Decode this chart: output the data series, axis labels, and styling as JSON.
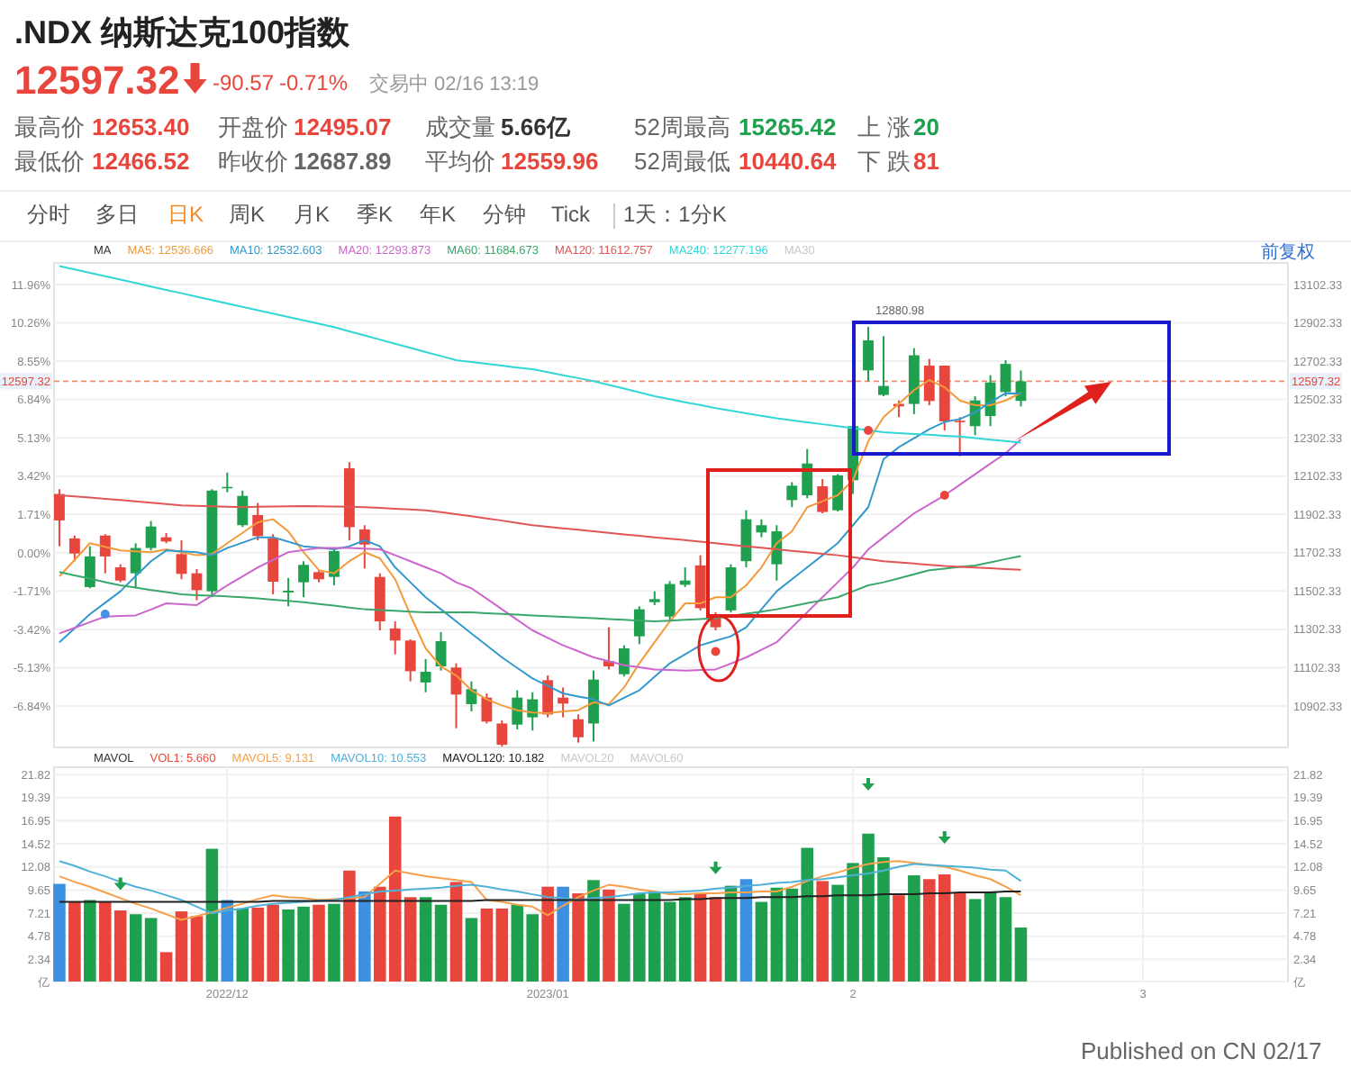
{
  "chart_data": [
    {
      "type": "other",
      "title": ".NDX 纳斯达克100指数",
      "annotations": [
        "12597.32",
        "-90.57",
        "-0.71%",
        "交易中 02/16 13:19",
        "最高价",
        "12653.40",
        "开盘价",
        "12495.07",
        "成交量",
        "5.66亿",
        "52周最高",
        "15265.42",
        "上 涨",
        "20",
        "最低价",
        "12466.52",
        "昨收价",
        "12687.89",
        "平均价",
        "12559.96",
        "52周最低",
        "10440.64",
        "下 跌",
        "81",
        "分时",
        "多日",
        "日K",
        "周K",
        "月K",
        "季K",
        "年K",
        "分钟",
        "Tick",
        "1天：1分K",
        "前复权",
        "Published on CN 02/17"
      ]
    },
    {
      "type": "candlestick",
      "categories": [
        null,
        null,
        null,
        null,
        null,
        null,
        null,
        null,
        null,
        null,
        null,
        null,
        null,
        null,
        null,
        null,
        null,
        null,
        null,
        null,
        null,
        null,
        null,
        null,
        null,
        null,
        null,
        null,
        null,
        null,
        null,
        null,
        null,
        null,
        null,
        null,
        null,
        null,
        null,
        null,
        null,
        null,
        null,
        null,
        null,
        null,
        null,
        null,
        null,
        null,
        null,
        null,
        null,
        null,
        null,
        null,
        null,
        null,
        null,
        null,
        null,
        null,
        null,
        null,
        null,
        null,
        null,
        null,
        null,
        null,
        null,
        null,
        null,
        null,
        null,
        null,
        null,
        null,
        null,
        null,
        null
      ],
      "ohlc": [
        [
          12009,
          12034,
          11736,
          11871
        ],
        [
          11777,
          11792,
          11658,
          11698
        ],
        [
          11523,
          11736,
          11517,
          11683
        ],
        [
          11792,
          11799,
          11595,
          11683
        ],
        [
          11626,
          11642,
          11548,
          11557
        ],
        [
          11595,
          11752,
          11517,
          11727
        ],
        [
          11727,
          11868,
          11714,
          11839
        ],
        [
          11783,
          11805,
          11752,
          11761
        ],
        [
          11695,
          11767,
          11564,
          11592
        ],
        [
          11595,
          11617,
          11454,
          11507
        ],
        [
          11501,
          12034,
          11470,
          12027
        ],
        [
          12040,
          12121,
          12018,
          12046
        ],
        [
          11846,
          12027,
          11836,
          11999
        ],
        [
          11899,
          11962,
          11767,
          11789
        ],
        [
          11777,
          11799,
          11485,
          11551
        ],
        [
          11495,
          11570,
          11423,
          11504
        ],
        [
          11548,
          11658,
          11470,
          11639
        ],
        [
          11601,
          11611,
          11548,
          11564
        ],
        [
          11576,
          11720,
          11532,
          11711
        ],
        [
          12143,
          12175,
          11767,
          11836
        ],
        [
          11824,
          11846,
          11620,
          11745
        ],
        [
          11576,
          11595,
          11297,
          11344
        ],
        [
          11307,
          11344,
          11172,
          11244
        ],
        [
          11244,
          11250,
          11031,
          11084
        ],
        [
          11025,
          11147,
          10974,
          11081
        ],
        [
          11109,
          11288,
          11087,
          11241
        ],
        [
          11103,
          11125,
          10786,
          10962
        ],
        [
          10912,
          11031,
          10874,
          10990
        ],
        [
          10946,
          10968,
          10811,
          10821
        ],
        [
          10811,
          10827,
          10690,
          10700
        ],
        [
          10805,
          10984,
          10780,
          10946
        ],
        [
          10843,
          10974,
          10774,
          10937
        ],
        [
          11037,
          11062,
          10843,
          10858
        ],
        [
          10946,
          10999,
          10843,
          10915
        ],
        [
          10833,
          10858,
          10711,
          10739
        ],
        [
          10811,
          11087,
          10717,
          11040
        ],
        [
          11137,
          11313,
          11093,
          11109
        ],
        [
          11068,
          11219,
          11056,
          11203
        ],
        [
          11266,
          11423,
          11225,
          11407
        ],
        [
          11444,
          11501,
          11429,
          11460
        ],
        [
          11369,
          11554,
          11350,
          11539
        ],
        [
          11535,
          11626,
          11523,
          11557
        ],
        [
          11636,
          11689,
          11401,
          11413
        ],
        [
          11366,
          11391,
          11297,
          11313
        ],
        [
          11401,
          11642,
          11391,
          11626
        ],
        [
          11658,
          11924,
          11626,
          11877
        ],
        [
          11808,
          11877,
          11783,
          11846
        ],
        [
          11642,
          11846,
          11557,
          11814
        ],
        [
          11977,
          12071,
          11940,
          12052
        ],
        [
          12002,
          12244,
          11987,
          12168
        ],
        [
          12049,
          12087,
          11908,
          11915
        ],
        [
          11924,
          12112,
          11918,
          12106
        ],
        [
          12081,
          12372,
          12009,
          12363
        ],
        [
          12654,
          12880.98,
          12598,
          12811
        ],
        [
          12526,
          12833,
          12519,
          12573
        ],
        [
          12479,
          12497,
          12410,
          12466
        ],
        [
          12479,
          12770,
          12426,
          12733
        ],
        [
          12679,
          12714,
          12472,
          12494
        ],
        [
          12679,
          12679,
          12341,
          12388
        ],
        [
          12391,
          12410,
          12206,
          12385
        ],
        [
          12363,
          12519,
          12316,
          12497
        ],
        [
          12416,
          12629,
          12363,
          12591
        ],
        [
          12541,
          12707,
          12519,
          12687.89
        ],
        [
          12495.07,
          12653.4,
          12466.52,
          12597.32
        ],
        null,
        null,
        null,
        null,
        null,
        null,
        null,
        null,
        null,
        null,
        null,
        null,
        null,
        null,
        null,
        null,
        null
      ],
      "colors": [
        "#e8463c",
        "#e8463c",
        "#1fa04e",
        "#e8463c",
        "#e8463c",
        "#1fa04e",
        "#1fa04e",
        "#e8463c",
        "#e8463c",
        "#e8463c",
        "#1fa04e",
        "#1fa04e",
        "#1fa04e",
        "#e8463c",
        "#e8463c",
        "#1fa04e",
        "#1fa04e",
        "#e8463c",
        "#1fa04e",
        "#e8463c",
        "#e8463c",
        "#e8463c",
        "#e8463c",
        "#e8463c",
        "#1fa04e",
        "#1fa04e",
        "#e8463c",
        "#1fa04e",
        "#e8463c",
        "#e8463c",
        "#1fa04e",
        "#1fa04e",
        "#e8463c",
        "#e8463c",
        "#e8463c",
        "#1fa04e",
        "#e8463c",
        "#1fa04e",
        "#1fa04e",
        "#1fa04e",
        "#1fa04e",
        "#1fa04e",
        "#e8463c",
        "#e8463c",
        "#1fa04e",
        "#1fa04e",
        "#1fa04e",
        "#1fa04e",
        "#1fa04e",
        "#1fa04e",
        "#e8463c",
        "#1fa04e",
        "#1fa04e",
        "#1fa04e",
        "#1fa04e",
        "#e8463c",
        "#1fa04e",
        "#e8463c",
        "#e8463c",
        "#e8463c",
        "#1fa04e",
        "#1fa04e",
        "#1fa04e",
        "#1fa04e",
        null,
        null,
        null,
        null,
        null,
        null,
        null,
        null,
        null,
        null,
        null,
        null,
        null,
        null,
        null,
        null,
        null
      ],
      "ylim": [
        10686,
        13215
      ],
      "yticks": [
        10902.33,
        11102.33,
        11302.33,
        11502.33,
        11702.33,
        11902.33,
        12102.33,
        12302.33,
        12502.33,
        12702.33,
        12902.33,
        13102.33
      ],
      "y2lim": [
        -8.68,
        12.93
      ],
      "y2ticks": [
        {
          "value": -6.84,
          "label": "-6.84%"
        },
        {
          "value": -5.13,
          "label": "-5.13%"
        },
        {
          "value": -3.42,
          "label": "-3.42%"
        },
        {
          "value": -1.71,
          "label": "-1.71%"
        },
        {
          "value": 0,
          "label": "0.00%"
        },
        {
          "value": 1.71,
          "label": "1.71%"
        },
        {
          "value": 3.42,
          "label": "3.42%"
        },
        {
          "value": 5.13,
          "label": "5.13%"
        },
        {
          "value": 6.84,
          "label": "6.84%"
        },
        {
          "value": 8.55,
          "label": "8.55%"
        },
        {
          "value": 10.26,
          "label": "10.26%"
        },
        {
          "value": 11.96,
          "label": "11.96%"
        }
      ],
      "grid": "y",
      "ref_lines": [
        {
          "axis": "y",
          "value": 12597.32,
          "label": "12597.32",
          "color": "#f0906a",
          "line_style": "dashed"
        }
      ],
      "annotations": [
        "MA",
        "MA30",
        "12880.98"
      ],
      "series": [
        {
          "type": "line",
          "name": "MA5: 12536.666",
          "color": "#f39a3b",
          "values": [
            11579,
            11665,
            11752,
            11733,
            11714,
            11710,
            11705,
            11720,
            11705,
            11689,
            11695,
            11752,
            11806,
            11861,
            11877,
            11814,
            11705,
            11611,
            11595,
            11658,
            11705,
            11673,
            11564,
            11376,
            11203,
            11109,
            11062,
            10984,
            10937,
            10905,
            10880,
            10868,
            10865,
            10874,
            10880,
            10921,
            10912,
            10999,
            11125,
            11235,
            11344,
            11438,
            11438,
            11470,
            11470,
            11532,
            11626,
            11752,
            11814,
            11940,
            11971,
            12002,
            12081,
            12284,
            12410,
            12479,
            12551,
            12604,
            12566,
            12497,
            12472,
            12472,
            12497,
            12537,
            null,
            null,
            null,
            null,
            null,
            null,
            null,
            null,
            null,
            null,
            null,
            null,
            null,
            null,
            null,
            null,
            null
          ]
        },
        {
          "type": "line",
          "name": "MA10: 12532.603",
          "color": "#3399cc",
          "values": [
            11235,
            11308,
            11382,
            11441,
            11501,
            11580,
            11658,
            11714,
            11710,
            11705,
            11689,
            11727,
            11755,
            11783,
            11783,
            11760,
            11736,
            11728,
            11720,
            11736,
            11767,
            11736,
            11626,
            11548,
            11470,
            11407,
            11344,
            11281,
            11218,
            11156,
            11101,
            11046,
            11007,
            10968,
            10952,
            10937,
            10905,
            10945,
            10984,
            11055,
            11125,
            11172,
            11219,
            11243,
            11266,
            11313,
            11407,
            11501,
            11564,
            11626,
            11689,
            11752,
            11846,
            11940,
            12190,
            12253,
            12300,
            12347,
            12385,
            12400,
            12435,
            12488,
            12535,
            12533,
            null,
            null,
            null,
            null,
            null,
            null,
            null,
            null,
            null,
            null,
            null,
            null,
            null,
            null,
            null,
            null,
            null
          ]
        },
        {
          "type": "line",
          "name": "MA20: 12293.873",
          "color": "#cc66cc",
          "values": [
            11281,
            11310,
            11340,
            11369,
            11372,
            11375,
            11406,
            11438,
            11434,
            11429,
            11480,
            11532,
            11579,
            11626,
            11665,
            11705,
            11716,
            11727,
            11727,
            11727,
            11724,
            11720,
            11689,
            11658,
            11626,
            11595,
            11548,
            11517,
            11462,
            11407,
            11352,
            11297,
            11258,
            11219,
            11188,
            11156,
            11136,
            11115,
            11104,
            11093,
            11090,
            11087,
            11090,
            11093,
            11124,
            11156,
            11195,
            11235,
            11313,
            11391,
            11470,
            11548,
            11626,
            11720,
            11783,
            11845,
            11908,
            11955,
            12002,
            12057,
            12112,
            12167,
            12222,
            12294,
            null,
            null,
            null,
            null,
            null,
            null,
            null,
            null,
            null,
            null,
            null,
            null,
            null,
            null,
            null,
            null,
            null
          ]
        },
        {
          "type": "line",
          "name": "MA60: 11684.673",
          "color": "#3aa86b",
          "values": [
            11601,
            11584,
            11567,
            11549,
            11532,
            11520,
            11508,
            11497,
            11485,
            11481,
            11478,
            11474,
            11470,
            11464,
            11457,
            11451,
            11444,
            11435,
            11426,
            11416,
            11407,
            11403,
            11399,
            11395,
            11391,
            11391,
            11391,
            11391,
            11387,
            11383,
            11379,
            11375,
            11371,
            11368,
            11364,
            11360,
            11356,
            11352,
            11348,
            11344,
            11348,
            11352,
            11356,
            11360,
            11372,
            11384,
            11395,
            11407,
            11423,
            11439,
            11454,
            11470,
            11501,
            11532,
            11548,
            11569,
            11590,
            11611,
            11619,
            11628,
            11636,
            11652,
            11669,
            11685,
            null,
            null,
            null,
            null,
            null,
            null,
            null,
            null,
            null,
            null,
            null,
            null,
            null,
            null,
            null,
            null,
            null
          ]
        },
        {
          "type": "line",
          "name": "MA120: 11612.757",
          "color": "#e05555",
          "values": [
            12002,
            11996,
            11990,
            11983,
            11977,
            11970,
            11963,
            11956,
            11949,
            11947,
            11945,
            11942,
            11940,
            11942,
            11943,
            11945,
            11946,
            11945,
            11943,
            11942,
            11940,
            11936,
            11932,
            11928,
            11924,
            11914,
            11903,
            11893,
            11881,
            11870,
            11858,
            11846,
            11838,
            11830,
            11822,
            11814,
            11806,
            11798,
            11791,
            11783,
            11775,
            11768,
            11760,
            11752,
            11744,
            11736,
            11728,
            11720,
            11712,
            11705,
            11697,
            11689,
            11679,
            11668,
            11658,
            11652,
            11646,
            11639,
            11633,
            11629,
            11625,
            11621,
            11617,
            11613,
            null,
            null,
            null,
            null,
            null,
            null,
            null,
            null,
            null,
            null,
            null,
            null,
            null,
            null,
            null,
            null,
            null
          ]
        },
        {
          "type": "line",
          "name": "MA240: 12277.196",
          "color": "#33d6d6",
          "values": [
            13199,
            13181,
            13163,
            13146,
            13128,
            13110,
            13092,
            13074,
            13057,
            13039,
            13021,
            13003,
            12986,
            12968,
            12951,
            12933,
            12915,
            12898,
            12880,
            12858,
            12837,
            12815,
            12793,
            12772,
            12750,
            12729,
            12707,
            12698,
            12688,
            12679,
            12669,
            12660,
            12645,
            12629,
            12614,
            12598,
            12578,
            12559,
            12539,
            12519,
            12504,
            12488,
            12473,
            12457,
            12444,
            12430,
            12417,
            12404,
            12394,
            12383,
            12373,
            12363,
            12352,
            12342,
            12331,
            12327,
            12322,
            12318,
            12313,
            12309,
            12301,
            12293,
            12285,
            12277,
            null,
            null,
            null,
            null,
            null,
            null,
            null,
            null,
            null,
            null,
            null,
            null,
            null,
            null,
            null,
            null,
            null
          ]
        },
        {
          "type": "scatter",
          "marker": "circle",
          "values": [
            null,
            null,
            null,
            11382,
            null,
            null,
            null,
            null,
            null,
            null,
            null,
            null,
            null,
            null,
            null,
            null,
            null,
            null,
            null,
            null,
            null,
            null,
            null,
            null,
            null,
            null,
            null,
            null,
            null,
            null,
            null,
            null,
            null,
            null,
            null,
            null,
            null,
            null,
            null,
            null,
            null,
            null,
            null,
            11187,
            null,
            null,
            null,
            null,
            null,
            null,
            null,
            null,
            null,
            12341,
            null,
            null,
            null,
            null,
            12002,
            null,
            null,
            null,
            null,
            null,
            null,
            null,
            null,
            null,
            null,
            null,
            null,
            null,
            null,
            null,
            null,
            null,
            null,
            null,
            null,
            null,
            null
          ],
          "colors": [
            null,
            null,
            null,
            "#4a90e2",
            null,
            null,
            null,
            null,
            null,
            null,
            null,
            null,
            null,
            null,
            null,
            null,
            null,
            null,
            null,
            null,
            null,
            null,
            null,
            null,
            null,
            null,
            null,
            null,
            null,
            null,
            null,
            null,
            null,
            null,
            null,
            null,
            null,
            null,
            null,
            null,
            null,
            null,
            null,
            "#e8463c",
            null,
            null,
            null,
            null,
            null,
            null,
            null,
            null,
            null,
            "#e8463c",
            null,
            null,
            null,
            null,
            "#e8463c",
            null,
            null,
            null,
            null,
            null,
            null,
            null,
            null,
            null,
            null,
            null,
            null,
            null,
            null,
            null,
            null,
            null,
            null,
            null,
            null,
            null,
            null
          ]
        }
      ]
    },
    {
      "type": "bar",
      "categories": [
        null,
        null,
        null,
        null,
        null,
        null,
        null,
        null,
        null,
        null,
        null,
        "2022/12",
        null,
        null,
        null,
        null,
        null,
        null,
        null,
        null,
        null,
        null,
        null,
        null,
        null,
        null,
        null,
        null,
        null,
        null,
        null,
        null,
        "2023/01",
        null,
        null,
        null,
        null,
        null,
        null,
        null,
        null,
        null,
        null,
        null,
        null,
        null,
        null,
        null,
        null,
        null,
        null,
        null,
        "2",
        null,
        null,
        null,
        null,
        null,
        null,
        null,
        null,
        null,
        null,
        null,
        null,
        null,
        null,
        null,
        null,
        null,
        null,
        "3",
        null,
        null,
        null,
        null,
        null,
        null,
        null,
        null,
        null
      ],
      "ylim": [
        0,
        22.6
      ],
      "yticks": [
        {
          "value": 0,
          "label": "亿"
        },
        2.34,
        4.78,
        7.21,
        9.65,
        12.08,
        14.52,
        16.95,
        19.39,
        21.82
      ],
      "y2lim": [
        0,
        22.6
      ],
      "y2ticks": [
        {
          "value": 0,
          "label": "亿"
        },
        2.34,
        4.78,
        7.21,
        9.65,
        12.08,
        14.52,
        16.95,
        19.39,
        21.82
      ],
      "grid": true,
      "annotations": [
        "MAVOL",
        "MAVOL20",
        "MAVOL60"
      ],
      "series": [
        {
          "type": "bar",
          "name": "VOL1: 5.660",
          "color": "#e8463c",
          "values": [
            10.3,
            8.4,
            8.6,
            8.4,
            7.5,
            7.1,
            6.7,
            3.1,
            7.4,
            6.9,
            14.0,
            8.6,
            7.7,
            7.8,
            8.1,
            7.6,
            7.9,
            8.1,
            8.2,
            11.7,
            9.5,
            10.0,
            17.4,
            8.9,
            8.9,
            8.1,
            10.5,
            6.7,
            7.7,
            7.7,
            8.1,
            7.1,
            10.0,
            10.0,
            9.3,
            10.7,
            9.7,
            8.2,
            9.3,
            9.5,
            8.4,
            8.9,
            9.3,
            8.9,
            10.1,
            10.8,
            8.4,
            9.9,
            9.8,
            14.1,
            10.6,
            10.2,
            12.5,
            15.6,
            13.1,
            9.1,
            11.2,
            10.8,
            11.3,
            9.4,
            8.7,
            9.5,
            8.9,
            5.7,
            null,
            null,
            null,
            null,
            null,
            null,
            null,
            null,
            null,
            null,
            null,
            null,
            null,
            null,
            null,
            null,
            null
          ],
          "colors": [
            "#3d8fe0",
            "#e8463c",
            "#1fa04e",
            "#e8463c",
            "#e8463c",
            "#1fa04e",
            "#1fa04e",
            "#e8463c",
            "#e8463c",
            "#e8463c",
            "#1fa04e",
            "#3d8fe0",
            "#1fa04e",
            "#e8463c",
            "#e8463c",
            "#1fa04e",
            "#1fa04e",
            "#e8463c",
            "#1fa04e",
            "#e8463c",
            "#3d8fe0",
            "#e8463c",
            "#e8463c",
            "#e8463c",
            "#1fa04e",
            "#1fa04e",
            "#e8463c",
            "#1fa04e",
            "#e8463c",
            "#e8463c",
            "#1fa04e",
            "#1fa04e",
            "#e8463c",
            "#3d8fe0",
            "#e8463c",
            "#1fa04e",
            "#e8463c",
            "#1fa04e",
            "#1fa04e",
            "#1fa04e",
            "#1fa04e",
            "#1fa04e",
            "#e8463c",
            "#e8463c",
            "#1fa04e",
            "#3d8fe0",
            "#1fa04e",
            "#1fa04e",
            "#1fa04e",
            "#1fa04e",
            "#e8463c",
            "#1fa04e",
            "#1fa04e",
            "#1fa04e",
            "#1fa04e",
            "#e8463c",
            "#1fa04e",
            "#e8463c",
            "#e8463c",
            "#e8463c",
            "#1fa04e",
            "#1fa04e",
            "#1fa04e",
            "#1fa04e",
            null,
            null,
            null,
            null,
            null,
            null,
            null,
            null,
            null,
            null,
            null,
            null,
            null,
            null,
            null,
            null,
            null
          ]
        },
        {
          "type": "line",
          "name": "MAVOL5: 9.131",
          "color": "#f5a04a",
          "values": [
            11.1,
            10.5,
            10.0,
            9.4,
            8.8,
            8.2,
            7.7,
            7.1,
            6.5,
            6.9,
            7.3,
            7.8,
            8.2,
            8.7,
            9.1,
            8.9,
            8.8,
            8.6,
            8.7,
            8.8,
            8.9,
            10.3,
            11.7,
            11.4,
            11.1,
            10.9,
            10.7,
            10.5,
            8.6,
            8.4,
            8.1,
            7.9,
            7.0,
            8.0,
            8.9,
            9.6,
            10.2,
            10.0,
            9.7,
            9.5,
            9.2,
            9.2,
            9.3,
            9.3,
            9.4,
            9.4,
            9.5,
            9.5,
            10.0,
            10.6,
            11.1,
            11.5,
            12.0,
            12.4,
            12.6,
            12.7,
            12.5,
            12.3,
            12.1,
            11.7,
            11.2,
            10.8,
            10.0,
            9.1,
            null,
            null,
            null,
            null,
            null,
            null,
            null,
            null,
            null,
            null,
            null,
            null,
            null,
            null,
            null,
            null,
            null
          ]
        },
        {
          "type": "line",
          "name": "MAVOL10: 10.553",
          "color": "#4fb0d8",
          "values": [
            12.7,
            12.2,
            11.6,
            11.1,
            10.5,
            10.0,
            9.6,
            9.1,
            8.6,
            7.9,
            7.2,
            7.5,
            7.7,
            8.0,
            8.2,
            8.3,
            8.4,
            8.5,
            8.6,
            8.9,
            9.2,
            9.5,
            9.6,
            9.7,
            9.8,
            9.9,
            10.1,
            10.2,
            10.0,
            9.7,
            9.5,
            9.2,
            8.9,
            8.8,
            8.6,
            8.8,
            8.9,
            9.1,
            9.3,
            9.4,
            9.4,
            9.5,
            9.6,
            9.8,
            9.9,
            10.1,
            10.2,
            10.4,
            10.5,
            10.7,
            10.8,
            11.0,
            11.2,
            11.4,
            11.7,
            12.1,
            12.4,
            12.3,
            12.2,
            12.1,
            12.0,
            11.8,
            11.7,
            10.6,
            null,
            null,
            null,
            null,
            null,
            null,
            null,
            null,
            null,
            null,
            null,
            null,
            null,
            null,
            null,
            null,
            null
          ]
        },
        {
          "type": "line",
          "name": "MAVOL120: 10.182",
          "color": "#222222",
          "values": [
            8.4,
            8.4,
            8.4,
            8.4,
            8.4,
            8.4,
            8.4,
            8.4,
            8.4,
            8.4,
            8.4,
            8.4,
            8.4,
            8.4,
            8.5,
            8.5,
            8.5,
            8.5,
            8.5,
            8.5,
            8.5,
            8.5,
            8.5,
            8.5,
            8.5,
            8.5,
            8.5,
            8.5,
            8.6,
            8.6,
            8.6,
            8.6,
            8.6,
            8.6,
            8.6,
            8.6,
            8.6,
            8.6,
            8.6,
            8.6,
            8.6,
            8.7,
            8.7,
            8.8,
            8.8,
            8.8,
            8.9,
            8.9,
            8.9,
            9.0,
            9.0,
            9.1,
            9.1,
            9.1,
            9.2,
            9.2,
            9.2,
            9.3,
            9.3,
            9.4,
            9.4,
            9.4,
            9.5,
            9.5,
            null,
            null,
            null,
            null,
            null,
            null,
            null,
            null,
            null,
            null,
            null,
            null,
            null,
            null,
            null,
            null,
            null
          ]
        },
        {
          "type": "scatter",
          "marker": "triangle",
          "color": "#1fa04e",
          "values": [
            null,
            null,
            null,
            null,
            10.2,
            null,
            null,
            null,
            null,
            null,
            null,
            null,
            null,
            null,
            null,
            null,
            null,
            null,
            null,
            null,
            null,
            null,
            null,
            null,
            null,
            null,
            null,
            null,
            null,
            null,
            null,
            null,
            null,
            null,
            null,
            null,
            null,
            null,
            null,
            null,
            null,
            null,
            null,
            11.9,
            null,
            null,
            null,
            null,
            null,
            null,
            null,
            null,
            null,
            20.7,
            null,
            null,
            null,
            null,
            15.1,
            null,
            null,
            null,
            null,
            null,
            null,
            null,
            null,
            null,
            null,
            null,
            null,
            null,
            null,
            null,
            null,
            null,
            null,
            null,
            null,
            null,
            null
          ]
        }
      ]
    }
  ]
}
